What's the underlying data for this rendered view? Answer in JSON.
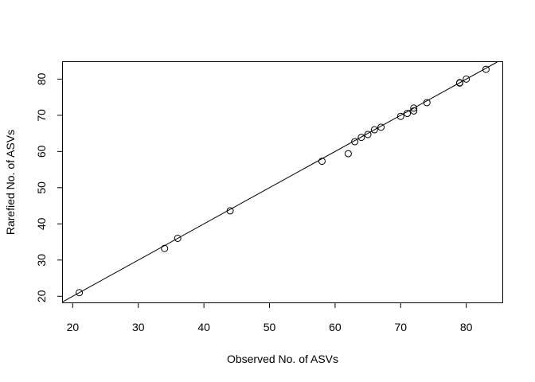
{
  "chart_data": {
    "type": "scatter",
    "title": "",
    "xlabel": "Observed No. of ASVs",
    "ylabel": "Rarefied No. of ASVs",
    "xlim": [
      18.5,
      85.5
    ],
    "ylim": [
      18.3,
      84.7
    ],
    "xticks": [
      20,
      30,
      40,
      50,
      60,
      70,
      80
    ],
    "yticks": [
      20,
      30,
      40,
      50,
      60,
      70,
      80
    ],
    "x_tick_labels": [
      "20",
      "30",
      "40",
      "50",
      "60",
      "70",
      "80"
    ],
    "y_tick_labels": [
      "20",
      "30",
      "40",
      "50",
      "60",
      "70",
      "80"
    ],
    "points": [
      {
        "x": 21,
        "y": 21.0
      },
      {
        "x": 34,
        "y": 33.2
      },
      {
        "x": 36,
        "y": 36.0
      },
      {
        "x": 44,
        "y": 43.6
      },
      {
        "x": 58,
        "y": 57.3
      },
      {
        "x": 62,
        "y": 59.4
      },
      {
        "x": 63,
        "y": 62.7
      },
      {
        "x": 64,
        "y": 63.9
      },
      {
        "x": 65,
        "y": 64.7
      },
      {
        "x": 66,
        "y": 66.0
      },
      {
        "x": 67,
        "y": 66.7
      },
      {
        "x": 70,
        "y": 69.7
      },
      {
        "x": 71,
        "y": 70.5
      },
      {
        "x": 72,
        "y": 71.2
      },
      {
        "x": 72,
        "y": 72.0
      },
      {
        "x": 74,
        "y": 73.5
      },
      {
        "x": 79,
        "y": 78.9
      },
      {
        "x": 79,
        "y": 79.0
      },
      {
        "x": 80,
        "y": 80.0
      },
      {
        "x": 83,
        "y": 82.7
      }
    ],
    "reference_line": {
      "intercept": 0,
      "slope": 1
    },
    "grid": false,
    "legend": "none",
    "colors": {
      "points": "#000000",
      "line": "#000000",
      "axes": "#000000"
    }
  }
}
